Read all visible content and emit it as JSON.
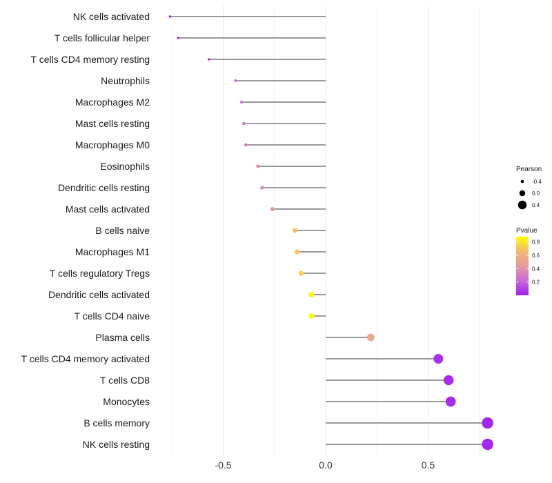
{
  "chart_data": {
    "type": "lollipop",
    "title": "",
    "xlabel": "",
    "ylabel": "",
    "xlim": [
      -0.85,
      0.85
    ],
    "xticks": [
      -0.5,
      0.0,
      0.5
    ],
    "xtick_labels": [
      "-0.5",
      "0.0",
      "0.5"
    ],
    "grid": "vertical",
    "legend_position": "right",
    "categories": [
      "NK cells activated",
      "T cells follicular helper",
      "T cells CD4 memory resting",
      "Neutrophils",
      "Macrophages M2",
      "Mast cells resting",
      "Macrophages M0",
      "Eosinophils",
      "Dendritic cells resting",
      "Mast cells activated",
      "B cells naive",
      "Macrophages M1",
      "T cells regulatory  Tregs",
      "Dendritic cells activated",
      "T cells CD4 naive",
      "Plasma cells",
      "T cells CD4 memory activated",
      "T cells CD8",
      "Monocytes",
      "B cells memory",
      "NK cells resting"
    ],
    "pearson": [
      -0.76,
      -0.72,
      -0.57,
      -0.44,
      -0.41,
      -0.4,
      -0.39,
      -0.33,
      -0.31,
      -0.26,
      -0.15,
      -0.14,
      -0.12,
      -0.07,
      -0.07,
      0.22,
      0.55,
      0.6,
      0.61,
      0.79,
      0.79
    ],
    "pvalue": [
      0.02,
      0.03,
      0.08,
      0.22,
      0.27,
      0.29,
      0.3,
      0.38,
      0.41,
      0.48,
      0.68,
      0.7,
      0.74,
      0.85,
      0.86,
      0.55,
      0.05,
      0.04,
      0.04,
      0.02,
      0.02
    ],
    "legend_size": {
      "title": "Pearson",
      "entries": [
        "-0.4",
        "0.0",
        "0.4"
      ],
      "values": [
        -0.4,
        0.0,
        0.4
      ]
    },
    "legend_color": {
      "title": "Pvalue",
      "ticks": [
        "0.2",
        "0.4",
        "0.6",
        "0.8"
      ],
      "tick_values": [
        0.2,
        0.4,
        0.6,
        0.8
      ],
      "range": [
        0.0,
        0.88
      ],
      "gradient": [
        "#a020f0",
        "#c86ad6",
        "#e39a9e",
        "#f1b872",
        "#ffff00"
      ]
    },
    "colors": {
      "stem": "#333333",
      "grid": "#ebebeb",
      "legend_dot": "#000000"
    }
  }
}
